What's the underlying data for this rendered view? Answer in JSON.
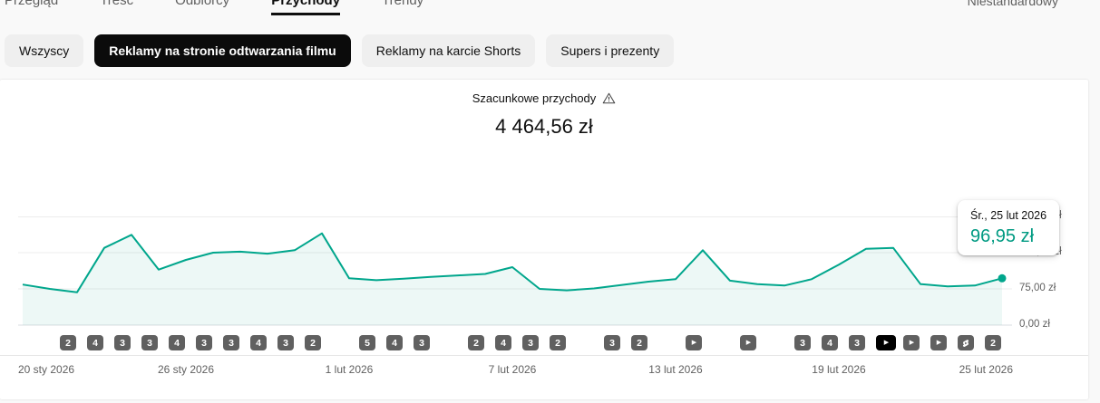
{
  "nav": {
    "tabs": [
      {
        "label": "Przegląd",
        "active": false
      },
      {
        "label": "Treść",
        "active": false
      },
      {
        "label": "Odbiorcy",
        "active": false
      },
      {
        "label": "Przychody",
        "active": true
      },
      {
        "label": "Trendy",
        "active": false
      }
    ],
    "right_label": "Niestandardowy"
  },
  "filters": {
    "chips": [
      {
        "label": "Wszyscy",
        "active": false
      },
      {
        "label": "Reklamy na stronie odtwarzania filmu",
        "active": true
      },
      {
        "label": "Reklamy na karcie Shorts",
        "active": false
      },
      {
        "label": "Supers i prezenty",
        "active": false
      }
    ]
  },
  "metric": {
    "title": "Szacunkowe przychody",
    "value": "4 464,56 zł"
  },
  "tooltip": {
    "date": "Śr., 25 lut 2026",
    "value": "96,95 zł"
  },
  "colors": {
    "line": "#00a68c",
    "fill": "rgba(0,150,125,0.07)",
    "tooltip_value": "#009a82",
    "badge_bg": "#606060",
    "badge_active_bg": "#000000",
    "grid": "#ececec",
    "baseline": "#dadce0"
  },
  "chart_data": {
    "type": "area",
    "title": "Szacunkowe przychody",
    "total_label": "4 464,56 zł",
    "ylabel": "zł",
    "ylim": [
      0,
      225
    ],
    "x_start_date": "20 sty 2026",
    "x_end_date": "25 lut 2026",
    "values": [
      84,
      75,
      68,
      160,
      187,
      115,
      135,
      150,
      152,
      148,
      155,
      190,
      97,
      93,
      96,
      100,
      103,
      106,
      120,
      75,
      72,
      76,
      83,
      90,
      95,
      155,
      92,
      85,
      82,
      95,
      125,
      158,
      160,
      85,
      80,
      82,
      96.95
    ],
    "highlight_point": {
      "date": "Śr., 25 lut 2026",
      "value": 96.95,
      "label": "96,95 zł"
    },
    "y_ticks": [
      {
        "value": 0,
        "label": "0,00 zł"
      },
      {
        "value": 75,
        "label": "75,00 zł"
      },
      {
        "value": 150,
        "label": "150,00 zł"
      },
      {
        "value": 225,
        "label": "225,00 zł"
      }
    ],
    "x_ticks": [
      {
        "day": 0,
        "label": "20 sty 2026",
        "align": "left"
      },
      {
        "day": 6,
        "label": "26 sty 2026",
        "align": "center"
      },
      {
        "day": 12,
        "label": "1 lut 2026",
        "align": "center"
      },
      {
        "day": 18,
        "label": "7 lut 2026",
        "align": "center"
      },
      {
        "day": 24,
        "label": "13 lut 2026",
        "align": "center"
      },
      {
        "day": 30,
        "label": "19 lut 2026",
        "align": "center"
      },
      {
        "day": 36,
        "label": "25 lut 2026",
        "align": "right"
      }
    ],
    "badges": [
      {
        "day": 1,
        "label": "2",
        "type": "count"
      },
      {
        "day": 2,
        "label": "4",
        "type": "count"
      },
      {
        "day": 3,
        "label": "3",
        "type": "count"
      },
      {
        "day": 4,
        "label": "3",
        "type": "count"
      },
      {
        "day": 5,
        "label": "4",
        "type": "count"
      },
      {
        "day": 6,
        "label": "3",
        "type": "count"
      },
      {
        "day": 7,
        "label": "3",
        "type": "count"
      },
      {
        "day": 8,
        "label": "4",
        "type": "count"
      },
      {
        "day": 9,
        "label": "3",
        "type": "count"
      },
      {
        "day": 10,
        "label": "2",
        "type": "count"
      },
      {
        "day": 12,
        "label": "5",
        "type": "count"
      },
      {
        "day": 13,
        "label": "4",
        "type": "count"
      },
      {
        "day": 14,
        "label": "3",
        "type": "count"
      },
      {
        "day": 16,
        "label": "2",
        "type": "count"
      },
      {
        "day": 17,
        "label": "4",
        "type": "count"
      },
      {
        "day": 18,
        "label": "3",
        "type": "count"
      },
      {
        "day": 19,
        "label": "2",
        "type": "count"
      },
      {
        "day": 21,
        "label": "3",
        "type": "count"
      },
      {
        "day": 22,
        "label": "2",
        "type": "count"
      },
      {
        "day": 24,
        "label": "",
        "type": "play"
      },
      {
        "day": 26,
        "label": "",
        "type": "play"
      },
      {
        "day": 28,
        "label": "3",
        "type": "count"
      },
      {
        "day": 29,
        "label": "4",
        "type": "count"
      },
      {
        "day": 30,
        "label": "3",
        "type": "count"
      },
      {
        "day": 31,
        "label": "",
        "type": "play-active"
      },
      {
        "day": 32,
        "label": "",
        "type": "play"
      },
      {
        "day": 33,
        "label": "",
        "type": "play"
      },
      {
        "day": 34,
        "label": "",
        "type": "shorts"
      },
      {
        "day": 35,
        "label": "2",
        "type": "count"
      }
    ]
  }
}
